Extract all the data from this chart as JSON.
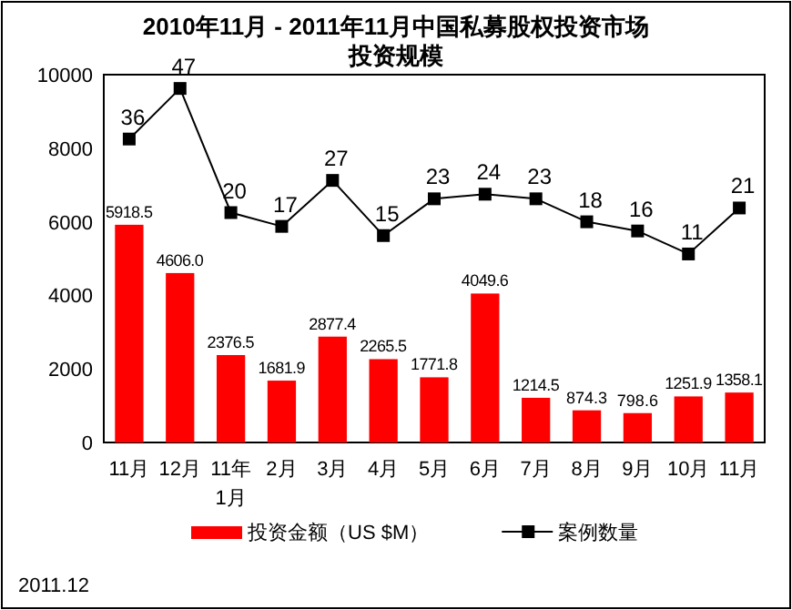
{
  "chart_data": {
    "type": "bar",
    "title": "2010年11月 - 2011年11月中国私募股权投资市场",
    "subtitle": "投资规模",
    "categories": [
      "11月",
      "12月",
      "11年\n1月",
      "2月",
      "3月",
      "4月",
      "5月",
      "6月",
      "7月",
      "8月",
      "9月",
      "10月",
      "11月"
    ],
    "series": [
      {
        "name": "投资金额（US $M）",
        "color": "#ff0000",
        "values": [
          5918.5,
          4606.0,
          2376.5,
          1681.9,
          2877.4,
          2265.5,
          1771.8,
          4049.6,
          1214.5,
          874.3,
          798.6,
          1251.9,
          1358.1
        ],
        "value_labels": [
          "5918.5",
          "4606.0",
          "2376.5",
          "1681.9",
          "2877.4",
          "2265.5",
          "1771.8",
          "4049.6",
          "1214.5",
          "874.3",
          "798.6",
          "1251.9",
          "1358.1"
        ]
      },
      {
        "name": "案例数量",
        "type": "line",
        "axis": "y2",
        "color": "#000000",
        "marker": "square",
        "values": [
          36,
          47,
          20,
          17,
          27,
          15,
          23,
          24,
          23,
          18,
          16,
          11,
          21
        ],
        "value_labels": [
          "36",
          "47",
          "20",
          "17",
          "27",
          "15",
          "23",
          "24",
          "23",
          "18",
          "16",
          "11",
          "21"
        ]
      }
    ],
    "ylim": [
      0,
      10000
    ],
    "yticks": [
      0,
      2000,
      4000,
      6000,
      8000,
      10000
    ],
    "y2lim": [
      -30,
      50
    ],
    "grid": false,
    "legend": "bottom",
    "annotations": [
      "2011.12"
    ]
  }
}
